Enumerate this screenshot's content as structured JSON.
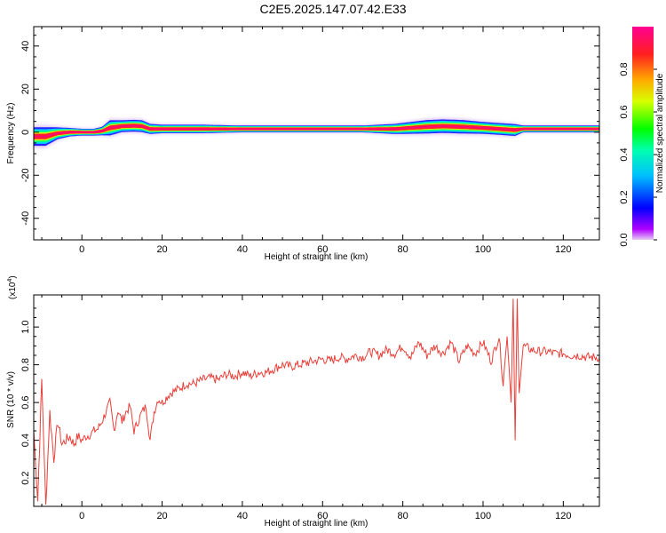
{
  "title": "C2E5.2025.147.07.42.E33",
  "chart_data": [
    {
      "type": "heatmap",
      "xlabel": "Height of straight line (km)",
      "ylabel": "Frequency (Hz)",
      "xlim": [
        -12,
        129
      ],
      "ylim": [
        -50,
        49
      ],
      "xticks": [
        0,
        20,
        40,
        60,
        80,
        100,
        120
      ],
      "yticks": [
        -40,
        -20,
        0,
        20,
        40
      ],
      "colorbar": {
        "label": "Normalized spectral amplitude",
        "range": [
          0,
          1
        ],
        "ticks": [
          0.0,
          0.2,
          0.4,
          0.6,
          0.8
        ]
      },
      "ridge": {
        "x": [
          -12,
          -9,
          -6,
          -3,
          0,
          3,
          5,
          7,
          10,
          13,
          15,
          17,
          20,
          30,
          40,
          50,
          60,
          70,
          78,
          82,
          86,
          90,
          95,
          100,
          104,
          108,
          110,
          120,
          129
        ],
        "freq": [
          -2,
          -2,
          -0.5,
          0,
          0,
          0,
          0.5,
          2,
          2.8,
          3,
          2.8,
          1.5,
          1.5,
          1.5,
          1.5,
          1.5,
          1.5,
          1.5,
          1.5,
          2,
          2.5,
          2.8,
          2.5,
          2,
          1.5,
          1,
          1.5,
          1.5,
          1.5
        ],
        "halfwidth": [
          5,
          5,
          3,
          2,
          1.5,
          1.5,
          2,
          4,
          3,
          3,
          3,
          2.5,
          2,
          2,
          1.5,
          1.5,
          1.5,
          1.5,
          2.5,
          3,
          3.5,
          3.5,
          3.5,
          3,
          3,
          3,
          1.5,
          1.5,
          1.5
        ]
      }
    },
    {
      "type": "line",
      "xlabel": "Height of straight line (km)",
      "ylabel": "SNR (10 * v/v)",
      "yscale_note": "(x10",
      "yscale_exp": "4",
      "yscale_close": ")",
      "xlim": [
        -12,
        129
      ],
      "ylim": [
        0.05,
        1.17
      ],
      "xticks": [
        0,
        20,
        40,
        60,
        80,
        100,
        120
      ],
      "yticks": [
        0.2,
        0.4,
        0.6,
        0.8,
        1.0
      ],
      "ytick_labels": [
        "0.2",
        "0.4",
        "0.6",
        "0.8",
        "1.0"
      ],
      "series": [
        {
          "color": "#e8403a",
          "x": [
            -12,
            -11,
            -10,
            -9,
            -8,
            -7,
            -6,
            -5,
            -4,
            -3,
            -2,
            -1,
            0,
            1,
            2,
            3,
            4,
            5,
            6,
            7,
            8,
            9,
            10,
            11,
            12,
            13,
            14,
            15,
            16,
            17,
            18,
            19,
            20,
            22,
            24,
            26,
            28,
            30,
            32,
            34,
            36,
            38,
            40,
            42,
            44,
            46,
            48,
            50,
            52,
            54,
            56,
            58,
            60,
            62,
            64,
            66,
            68,
            70,
            72,
            74,
            76,
            78,
            80,
            82,
            84,
            86,
            88,
            90,
            92,
            94,
            96,
            98,
            100,
            102,
            104,
            105,
            106,
            107,
            107.5,
            108,
            108.5,
            109,
            110,
            112,
            114,
            116,
            118,
            120,
            122,
            124,
            126,
            128,
            129
          ],
          "y": [
            0.45,
            0.08,
            0.72,
            0.05,
            0.55,
            0.3,
            0.5,
            0.38,
            0.4,
            0.42,
            0.38,
            0.42,
            0.4,
            0.42,
            0.43,
            0.45,
            0.46,
            0.5,
            0.55,
            0.6,
            0.45,
            0.56,
            0.5,
            0.55,
            0.58,
            0.45,
            0.5,
            0.55,
            0.58,
            0.4,
            0.55,
            0.62,
            0.6,
            0.65,
            0.67,
            0.7,
            0.7,
            0.72,
            0.73,
            0.72,
            0.75,
            0.74,
            0.76,
            0.74,
            0.76,
            0.76,
            0.78,
            0.8,
            0.79,
            0.8,
            0.81,
            0.82,
            0.83,
            0.82,
            0.84,
            0.83,
            0.85,
            0.84,
            0.87,
            0.85,
            0.88,
            0.86,
            0.9,
            0.84,
            0.92,
            0.85,
            0.9,
            0.86,
            0.92,
            0.82,
            0.9,
            0.86,
            0.92,
            0.82,
            0.95,
            0.7,
            0.95,
            0.6,
            1.15,
            0.4,
            1.15,
            0.65,
            0.9,
            0.88,
            0.87,
            0.87,
            0.86,
            0.86,
            0.85,
            0.85,
            0.84,
            0.84,
            0.84
          ]
        }
      ]
    }
  ]
}
